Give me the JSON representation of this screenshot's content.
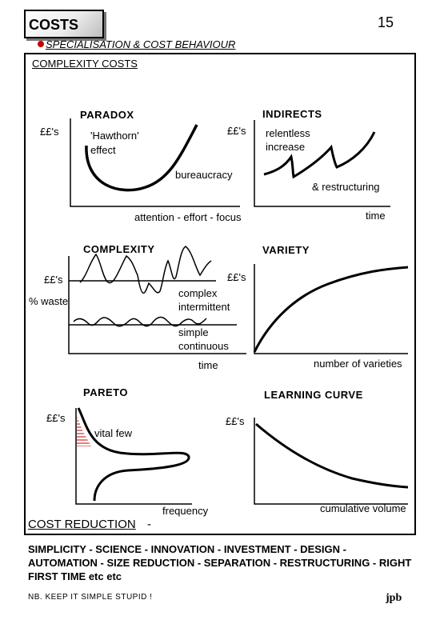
{
  "header": {
    "badge_label": "COSTS",
    "page_number": "15",
    "subtitle": "SPECIALISATION & COST BEHAVIOUR"
  },
  "section_title": "COMPLEXITY COSTS",
  "graphs": {
    "paradox": {
      "title": "PARADOX",
      "y_label": "££'s",
      "annotation": "'Hawthorn' effect",
      "annotation_line1": "'Hawthorn'",
      "annotation_line2": "effect",
      "x_label": "attention - effort - focus"
    },
    "indirects": {
      "title": "INDIRECTS",
      "y_label": "££'s",
      "annotation_line1": "relentless",
      "annotation_line2": "increase",
      "note_left": "bureaucracy",
      "note_right": "& restructuring",
      "x_label": "time"
    },
    "complexity": {
      "title": "COMPLEXITY",
      "y_label": "££'s",
      "y_label_2": "% waste",
      "upper_line1": "complex",
      "upper_line2": "intermittent",
      "lower_line1": "simple",
      "lower_line2": "continuous",
      "x_label": "time"
    },
    "variety": {
      "title": "VARIETY",
      "y_label": "££'s",
      "x_label": "number of varieties"
    },
    "pareto": {
      "title": "PARETO",
      "y_label": "££'s",
      "annotation": "vital few",
      "x_label": "frequency"
    },
    "learning_curve": {
      "title": "LEARNING CURVE",
      "y_label": "££'s",
      "x_label": "cumulative volume"
    }
  },
  "footer": {
    "cost_reduction_label": "COST REDUCTION",
    "cost_reduction_dash": "-",
    "reductions": "SIMPLICITY - SCIENCE - INNOVATION - INVESTMENT - DESIGN - AUTOMATION - SIZE REDUCTION - SEPARATION - RESTRUCTURING - RIGHT FIRST TIME etc etc",
    "note": "NB.  KEEP IT SIMPLE STUPID  !",
    "initials": "jpb"
  },
  "colors": {
    "bullet": "#c80000",
    "pareto_hatch": "#c80000"
  }
}
